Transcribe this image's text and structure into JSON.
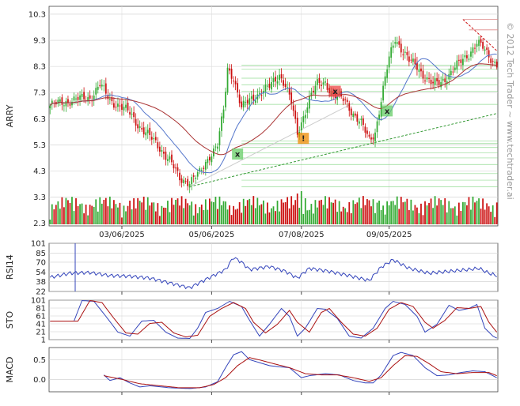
{
  "watermark": "© 2012 Tech Trader ~ www.techtrader.ai",
  "colors": {
    "up": "#33aa33",
    "down": "#cc1111",
    "ma_blue": "#5577cc",
    "ma_red": "#aa3333",
    "signal_green": "#66cc66",
    "signal_red": "#ee4444",
    "signal_orange": "#ee8800",
    "ind_blue": "#3344bb",
    "ind_red": "#aa1111",
    "grid": "#cccccc"
  },
  "chart_data": [
    {
      "type": "candlestick",
      "ylabel": "ARRY",
      "ylim": [
        2.2,
        10.6
      ],
      "yticks": [
        "10.3",
        "9.3",
        "8.3",
        "7.3",
        "6.3",
        "5.3",
        "4.3",
        "3.3",
        "2.3"
      ],
      "x_dates": [
        "03/06/2025",
        "05/06/2025",
        "07/08/2025",
        "09/05/2025"
      ],
      "x_date_index": [
        36,
        81,
        126,
        170
      ],
      "n_bars": 225,
      "anchors": [
        [
          0,
          6.8
        ],
        [
          10,
          7.0
        ],
        [
          20,
          7.1
        ],
        [
          25,
          7.6
        ],
        [
          30,
          7.0
        ],
        [
          35,
          6.8
        ],
        [
          40,
          6.5
        ],
        [
          45,
          6.0
        ],
        [
          50,
          5.6
        ],
        [
          55,
          5.2
        ],
        [
          60,
          4.7
        ],
        [
          65,
          4.0
        ],
        [
          70,
          3.9
        ],
        [
          75,
          4.2
        ],
        [
          80,
          4.9
        ],
        [
          84,
          5.3
        ],
        [
          87,
          6.6
        ],
        [
          89,
          8.2
        ],
        [
          92,
          7.9
        ],
        [
          96,
          6.7
        ],
        [
          100,
          7.0
        ],
        [
          105,
          7.3
        ],
        [
          110,
          7.5
        ],
        [
          115,
          8.0
        ],
        [
          118,
          7.6
        ],
        [
          121,
          6.9
        ],
        [
          124,
          5.7
        ],
        [
          127,
          6.4
        ],
        [
          130,
          7.1
        ],
        [
          134,
          7.6
        ],
        [
          138,
          7.7
        ],
        [
          142,
          7.2
        ],
        [
          148,
          7.0
        ],
        [
          152,
          6.5
        ],
        [
          156,
          6.1
        ],
        [
          160,
          5.5
        ],
        [
          163,
          5.8
        ],
        [
          166,
          7.0
        ],
        [
          170,
          8.6
        ],
        [
          173,
          9.4
        ],
        [
          176,
          9.0
        ],
        [
          180,
          8.5
        ],
        [
          184,
          8.3
        ],
        [
          188,
          7.9
        ],
        [
          192,
          7.6
        ],
        [
          196,
          7.7
        ],
        [
          200,
          8.0
        ],
        [
          205,
          8.4
        ],
        [
          210,
          8.8
        ],
        [
          214,
          9.2
        ],
        [
          217,
          9.0
        ],
        [
          220,
          8.7
        ],
        [
          224,
          8.4
        ]
      ],
      "volume": {
        "base": 1,
        "spikes": {
          "40": 10,
          "70": 8,
          "90": 8,
          "105": 8,
          "124": 13,
          "126": 14,
          "128": 11,
          "165": 10,
          "170": 8
        }
      },
      "support_lines": [
        7.35,
        7.6,
        7.85,
        8.2,
        8.35,
        6.85,
        4.2,
        4.55,
        4.8,
        5.0,
        5.2,
        5.35,
        5.45,
        3.7,
        3.95
      ],
      "trendline": {
        "from": [
          70,
          3.7
        ],
        "to": [
          224,
          6.5
        ]
      },
      "signals": [
        {
          "bar": 94,
          "price": 4.95,
          "label": "x",
          "color": "green"
        },
        {
          "bar": 127,
          "price": 5.55,
          "label": "!",
          "color": "orange"
        },
        {
          "bar": 143,
          "price": 7.35,
          "label": "x",
          "color": "red"
        },
        {
          "bar": 169,
          "price": 6.6,
          "label": "x",
          "color": "green"
        }
      ]
    },
    {
      "type": "line",
      "ylabel": "RSI14",
      "ylim": [
        22,
        101
      ],
      "yticks": [
        "101",
        "85",
        "70",
        "54",
        "38",
        "22"
      ],
      "series": [
        {
          "anchors": [
            [
              0,
              45
            ],
            [
              10,
              52
            ],
            [
              20,
              53
            ],
            [
              30,
              48
            ],
            [
              40,
              47
            ],
            [
              50,
              44
            ],
            [
              60,
              36
            ],
            [
              70,
              28
            ],
            [
              80,
              45
            ],
            [
              88,
              58
            ],
            [
              92,
              78
            ],
            [
              96,
              70
            ],
            [
              100,
              58
            ],
            [
              110,
              63
            ],
            [
              118,
              55
            ],
            [
              124,
              44
            ],
            [
              130,
              60
            ],
            [
              140,
              55
            ],
            [
              150,
              48
            ],
            [
              160,
              40
            ],
            [
              166,
              62
            ],
            [
              172,
              74
            ],
            [
              180,
              60
            ],
            [
              190,
              52
            ],
            [
              200,
              55
            ],
            [
              210,
              58
            ],
            [
              215,
              60
            ],
            [
              220,
              52
            ],
            [
              224,
              48
            ]
          ]
        }
      ]
    },
    {
      "type": "line",
      "ylabel": "STO",
      "ylim": [
        1,
        101
      ],
      "yticks": [
        "101",
        "81",
        "61",
        "41",
        "21",
        "1"
      ],
      "series": [
        {
          "anchors": [
            [
              0,
              48
            ],
            [
              12,
              48
            ],
            [
              16,
              100
            ],
            [
              22,
              98
            ],
            [
              28,
              60
            ],
            [
              34,
              20
            ],
            [
              40,
              10
            ],
            [
              46,
              48
            ],
            [
              52,
              50
            ],
            [
              58,
              20
            ],
            [
              64,
              5
            ],
            [
              70,
              4
            ],
            [
              74,
              30
            ],
            [
              78,
              70
            ],
            [
              84,
              80
            ],
            [
              90,
              98
            ],
            [
              96,
              85
            ],
            [
              100,
              50
            ],
            [
              105,
              10
            ],
            [
              110,
              40
            ],
            [
              116,
              80
            ],
            [
              120,
              60
            ],
            [
              124,
              10
            ],
            [
              128,
              30
            ],
            [
              134,
              80
            ],
            [
              138,
              78
            ],
            [
              144,
              55
            ],
            [
              150,
              10
            ],
            [
              156,
              5
            ],
            [
              162,
              30
            ],
            [
              168,
              80
            ],
            [
              172,
              98
            ],
            [
              178,
              90
            ],
            [
              184,
              60
            ],
            [
              188,
              20
            ],
            [
              194,
              40
            ],
            [
              200,
              88
            ],
            [
              205,
              75
            ],
            [
              210,
              80
            ],
            [
              214,
              90
            ],
            [
              218,
              30
            ],
            [
              222,
              10
            ],
            [
              224,
              5
            ]
          ]
        },
        {
          "anchors": [
            [
              0,
              48
            ],
            [
              14,
              48
            ],
            [
              20,
              100
            ],
            [
              26,
              95
            ],
            [
              32,
              55
            ],
            [
              38,
              18
            ],
            [
              44,
              15
            ],
            [
              50,
              42
            ],
            [
              56,
              45
            ],
            [
              62,
              18
            ],
            [
              68,
              8
            ],
            [
              74,
              12
            ],
            [
              80,
              60
            ],
            [
              86,
              80
            ],
            [
              92,
              95
            ],
            [
              98,
              80
            ],
            [
              102,
              45
            ],
            [
              108,
              18
            ],
            [
              114,
              40
            ],
            [
              120,
              75
            ],
            [
              124,
              45
            ],
            [
              130,
              20
            ],
            [
              136,
              70
            ],
            [
              140,
              80
            ],
            [
              146,
              45
            ],
            [
              152,
              15
            ],
            [
              158,
              10
            ],
            [
              164,
              30
            ],
            [
              170,
              78
            ],
            [
              176,
              95
            ],
            [
              182,
              85
            ],
            [
              188,
              45
            ],
            [
              192,
              30
            ],
            [
              198,
              50
            ],
            [
              204,
              82
            ],
            [
              210,
              80
            ],
            [
              216,
              85
            ],
            [
              220,
              45
            ],
            [
              224,
              20
            ]
          ]
        }
      ]
    },
    {
      "type": "line",
      "ylabel": "MACD",
      "ylim": [
        -0.3,
        0.8
      ],
      "yticks": [
        "0.5",
        "0.0"
      ],
      "series": [
        {
          "anchors": [
            [
              27,
              0.12
            ],
            [
              30,
              -0.02
            ],
            [
              35,
              0.05
            ],
            [
              40,
              -0.08
            ],
            [
              45,
              -0.18
            ],
            [
              50,
              -0.15
            ],
            [
              60,
              -0.2
            ],
            [
              70,
              -0.22
            ],
            [
              78,
              -0.18
            ],
            [
              84,
              -0.05
            ],
            [
              88,
              0.3
            ],
            [
              92,
              0.62
            ],
            [
              96,
              0.7
            ],
            [
              100,
              0.5
            ],
            [
              110,
              0.35
            ],
            [
              115,
              0.32
            ],
            [
              120,
              0.3
            ],
            [
              126,
              0.05
            ],
            [
              130,
              0.1
            ],
            [
              138,
              0.15
            ],
            [
              145,
              0.12
            ],
            [
              152,
              -0.02
            ],
            [
              158,
              -0.08
            ],
            [
              162,
              -0.08
            ],
            [
              166,
              0.12
            ],
            [
              172,
              0.6
            ],
            [
              176,
              0.68
            ],
            [
              182,
              0.6
            ],
            [
              188,
              0.3
            ],
            [
              194,
              0.1
            ],
            [
              200,
              0.12
            ],
            [
              206,
              0.18
            ],
            [
              212,
              0.22
            ],
            [
              218,
              0.2
            ],
            [
              224,
              0.05
            ]
          ]
        },
        {
          "anchors": [
            [
              27,
              0.1
            ],
            [
              35,
              0.02
            ],
            [
              45,
              -0.1
            ],
            [
              55,
              -0.15
            ],
            [
              65,
              -0.2
            ],
            [
              75,
              -0.2
            ],
            [
              82,
              -0.12
            ],
            [
              88,
              0.05
            ],
            [
              94,
              0.35
            ],
            [
              100,
              0.55
            ],
            [
              106,
              0.48
            ],
            [
              112,
              0.4
            ],
            [
              120,
              0.3
            ],
            [
              128,
              0.15
            ],
            [
              136,
              0.12
            ],
            [
              144,
              0.12
            ],
            [
              152,
              0.05
            ],
            [
              160,
              -0.04
            ],
            [
              166,
              0.05
            ],
            [
              172,
              0.35
            ],
            [
              178,
              0.6
            ],
            [
              184,
              0.58
            ],
            [
              190,
              0.4
            ],
            [
              196,
              0.2
            ],
            [
              204,
              0.15
            ],
            [
              212,
              0.18
            ],
            [
              220,
              0.18
            ],
            [
              224,
              0.1
            ]
          ]
        }
      ]
    }
  ]
}
